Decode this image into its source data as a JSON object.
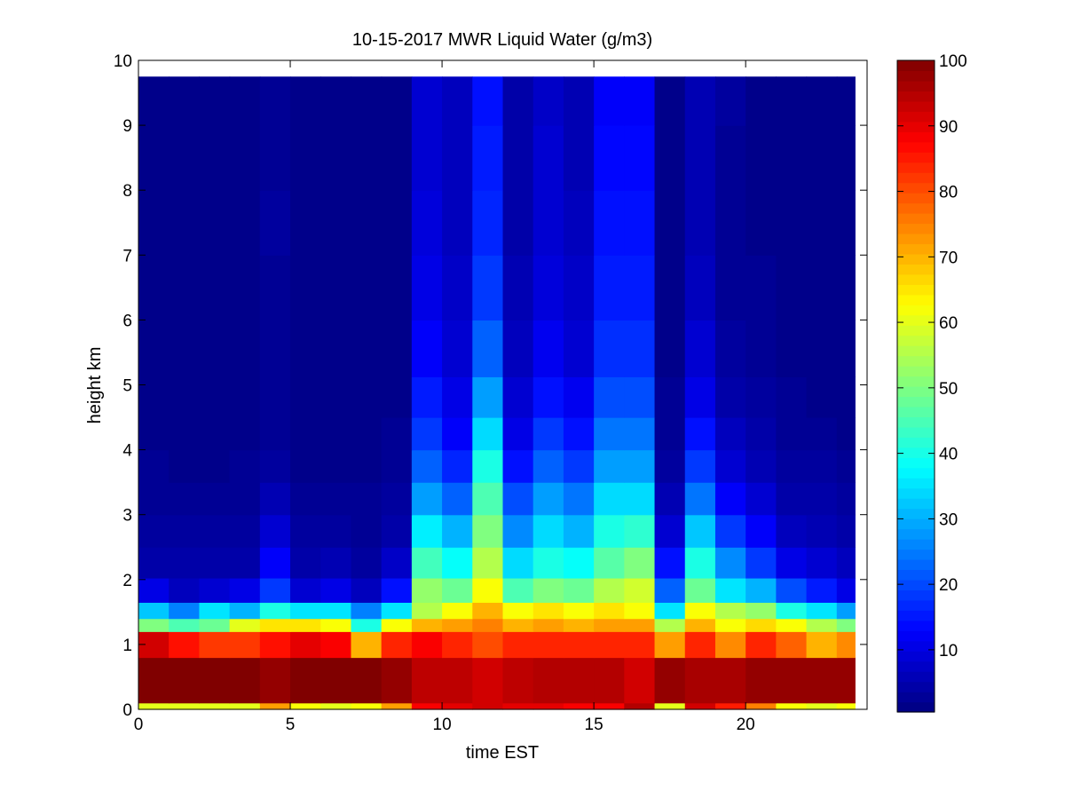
{
  "chart_data": {
    "type": "heatmap",
    "title": "10-15-2017 MWR Liquid Water (g/m3)",
    "xlabel": "time EST",
    "ylabel": "height km",
    "xlim": [
      0,
      24
    ],
    "ylim": [
      0,
      10
    ],
    "x_ticks": [
      "0",
      "5",
      "10",
      "15",
      "20"
    ],
    "y_ticks": [
      "0",
      "1",
      "2",
      "3",
      "4",
      "5",
      "6",
      "7",
      "8",
      "9",
      "10"
    ],
    "colorbar": {
      "colormap": "jet",
      "range": [
        0,
        100
      ],
      "ticks": [
        "10",
        "20",
        "30",
        "40",
        "50",
        "60",
        "70",
        "80",
        "90",
        "100"
      ]
    },
    "x": [
      0.5,
      1.5,
      2.5,
      3.5,
      4.5,
      5.5,
      6.5,
      7.5,
      8.5,
      9.5,
      10.5,
      11.5,
      12.5,
      13.5,
      14.5,
      15.5,
      16.5,
      17.5,
      18.5,
      19.5,
      20.5,
      21.5,
      22.5,
      23.5
    ],
    "y_levels_km": [
      0.05,
      0.5,
      1.1,
      1.3,
      1.5,
      1.8,
      2.25,
      2.75,
      3.25,
      3.75,
      4.25,
      4.75,
      5.5,
      6.5,
      7.5,
      8.5,
      9.5
    ],
    "y_max_km": 9.75,
    "values": [
      [
        60,
        60,
        60,
        60,
        72,
        62,
        60,
        62,
        72,
        88,
        90,
        92,
        90,
        90,
        88,
        88,
        95,
        60,
        92,
        85,
        75,
        62,
        60,
        62
      ],
      [
        100,
        100,
        100,
        100,
        98,
        100,
        100,
        100,
        98,
        94,
        94,
        92,
        94,
        95,
        95,
        95,
        92,
        98,
        96,
        96,
        98,
        98,
        98,
        98
      ],
      [
        92,
        86,
        82,
        82,
        86,
        90,
        88,
        70,
        84,
        88,
        84,
        80,
        84,
        84,
        84,
        84,
        84,
        72,
        84,
        74,
        84,
        78,
        70,
        74
      ],
      [
        50,
        45,
        48,
        60,
        65,
        65,
        62,
        40,
        62,
        70,
        72,
        75,
        70,
        72,
        70,
        72,
        72,
        55,
        70,
        62,
        66,
        62,
        55,
        50
      ],
      [
        32,
        25,
        35,
        30,
        40,
        35,
        35,
        25,
        35,
        55,
        62,
        70,
        62,
        65,
        62,
        65,
        62,
        35,
        62,
        55,
        52,
        40,
        35,
        28
      ],
      [
        10,
        6,
        8,
        10,
        18,
        8,
        10,
        6,
        14,
        52,
        48,
        62,
        45,
        50,
        48,
        55,
        58,
        22,
        48,
        35,
        30,
        20,
        15,
        10
      ],
      [
        4,
        4,
        4,
        4,
        12,
        4,
        5,
        3,
        7,
        44,
        38,
        55,
        34,
        40,
        38,
        46,
        50,
        14,
        40,
        26,
        18,
        10,
        8,
        6
      ],
      [
        3,
        3,
        3,
        3,
        8,
        3,
        3,
        2,
        4,
        36,
        30,
        50,
        26,
        34,
        30,
        40,
        42,
        8,
        32,
        18,
        12,
        6,
        5,
        4
      ],
      [
        2,
        2,
        2,
        2,
        5,
        2,
        2,
        2,
        3,
        28,
        22,
        45,
        20,
        28,
        24,
        34,
        34,
        5,
        24,
        12,
        8,
        4,
        4,
        3
      ],
      [
        2,
        1,
        1,
        2,
        3,
        1,
        1,
        1,
        2,
        22,
        16,
        40,
        14,
        22,
        18,
        28,
        28,
        3,
        18,
        8,
        5,
        3,
        3,
        2
      ],
      [
        1,
        1,
        1,
        1,
        2,
        1,
        1,
        1,
        2,
        18,
        12,
        34,
        10,
        18,
        14,
        24,
        24,
        2,
        14,
        6,
        4,
        2,
        2,
        1
      ],
      [
        1,
        1,
        1,
        1,
        2,
        1,
        1,
        1,
        1,
        15,
        10,
        28,
        8,
        14,
        11,
        20,
        20,
        2,
        10,
        4,
        3,
        2,
        1,
        1
      ],
      [
        1,
        1,
        1,
        1,
        2,
        1,
        1,
        1,
        1,
        12,
        8,
        22,
        6,
        11,
        8,
        17,
        17,
        1,
        8,
        3,
        2,
        1,
        1,
        1
      ],
      [
        1,
        1,
        1,
        1,
        2,
        1,
        1,
        1,
        1,
        10,
        7,
        18,
        5,
        9,
        7,
        15,
        15,
        1,
        6,
        2,
        2,
        1,
        1,
        1
      ],
      [
        1,
        1,
        1,
        1,
        3,
        1,
        1,
        1,
        1,
        9,
        6,
        16,
        4,
        8,
        6,
        14,
        14,
        1,
        5,
        2,
        1,
        1,
        1,
        1
      ],
      [
        1,
        1,
        1,
        1,
        2,
        1,
        1,
        1,
        1,
        8,
        6,
        15,
        4,
        8,
        5,
        13,
        13,
        1,
        5,
        2,
        1,
        1,
        1,
        1
      ],
      [
        1,
        1,
        1,
        1,
        2,
        1,
        1,
        1,
        1,
        8,
        6,
        14,
        4,
        7,
        5,
        12,
        12,
        1,
        5,
        3,
        1,
        1,
        1,
        1
      ]
    ]
  }
}
